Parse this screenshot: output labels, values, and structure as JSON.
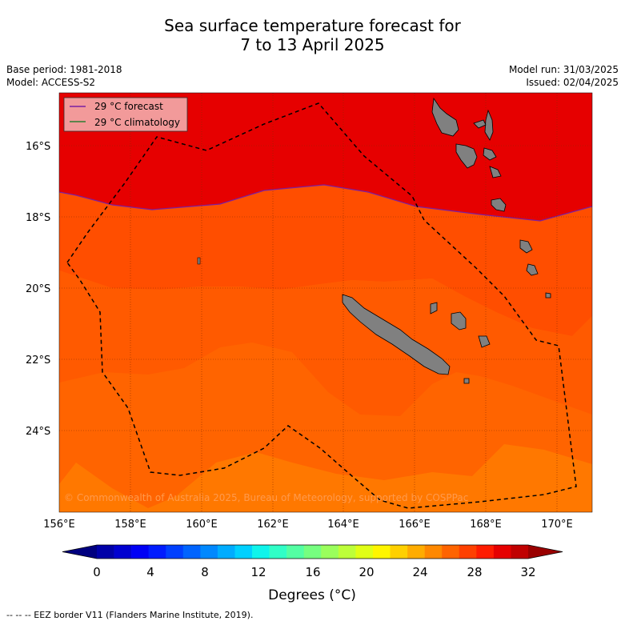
{
  "header": {
    "title_line1": "Sea surface temperature forecast for",
    "title_line2": "7 to 13 April 2025",
    "base_period": "Base period: 1981-2018",
    "model": "Model: ACCESS-S2",
    "model_run": "Model run: 31/03/2025",
    "issued": "Issued: 02/04/2025"
  },
  "legend": {
    "forecast_label": "29 °C  forecast",
    "climatology_label": "29 °C  climatology",
    "forecast_color": "#7b1fa2",
    "climatology_color": "#2e7d32"
  },
  "map": {
    "lon_labels": [
      "156°E",
      "158°E",
      "160°E",
      "162°E",
      "164°E",
      "166°E",
      "168°E",
      "170°E"
    ],
    "lat_labels": [
      "16°S",
      "18°S",
      "20°S",
      "22°S",
      "24°S"
    ],
    "copyright": "© Commonwealth of Australia 2025, Bureau of Meteorology, supported by COSPPac",
    "land_color": "#808080"
  },
  "colorbar": {
    "tick_labels": [
      "0",
      "4",
      "8",
      "12",
      "16",
      "20",
      "24",
      "28",
      "32"
    ],
    "title": "Degrees (°C)",
    "colors": [
      "#00007f",
      "#0000a8",
      "#0000d0",
      "#0000f5",
      "#001cff",
      "#0040ff",
      "#0064ff",
      "#0088ff",
      "#00acff",
      "#00d0ff",
      "#0ff4eb",
      "#30ffc7",
      "#53ffa3",
      "#76ff80",
      "#9aff5c",
      "#bdff39",
      "#e0ff16",
      "#fff500",
      "#ffd000",
      "#ffac00",
      "#ff8800",
      "#ff6400",
      "#ff4000",
      "#ff1c00",
      "#e60000",
      "#c00000",
      "#9a0000"
    ]
  },
  "footer": {
    "eez_note": "--  --  -- EEZ border V11 (Flanders Marine Institute, 2019)."
  }
}
